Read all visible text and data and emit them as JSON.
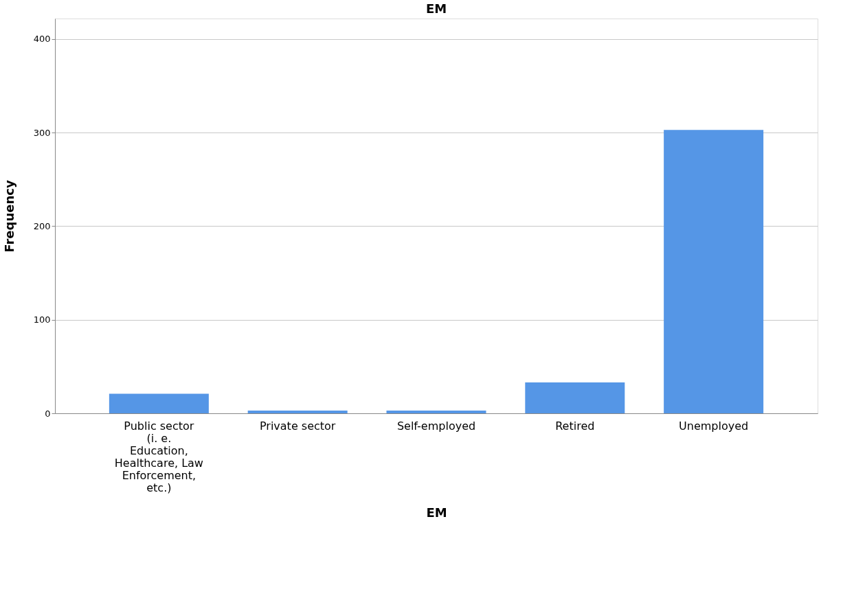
{
  "chart_data": {
    "type": "bar",
    "title": "EM",
    "xlabel": "EM",
    "ylabel": "Frequency",
    "categories": [
      "Public sector (i. e. Education, Healthcare, Law Enforcement, etc.)",
      "Private sector",
      "Self-employed",
      "Retired",
      "Unemployed"
    ],
    "values": [
      21,
      3,
      3,
      33,
      303
    ],
    "color": "#5596e6",
    "ylim": [
      0,
      422
    ],
    "yticks": [
      0,
      100,
      200,
      300,
      400
    ],
    "grid": "y"
  }
}
